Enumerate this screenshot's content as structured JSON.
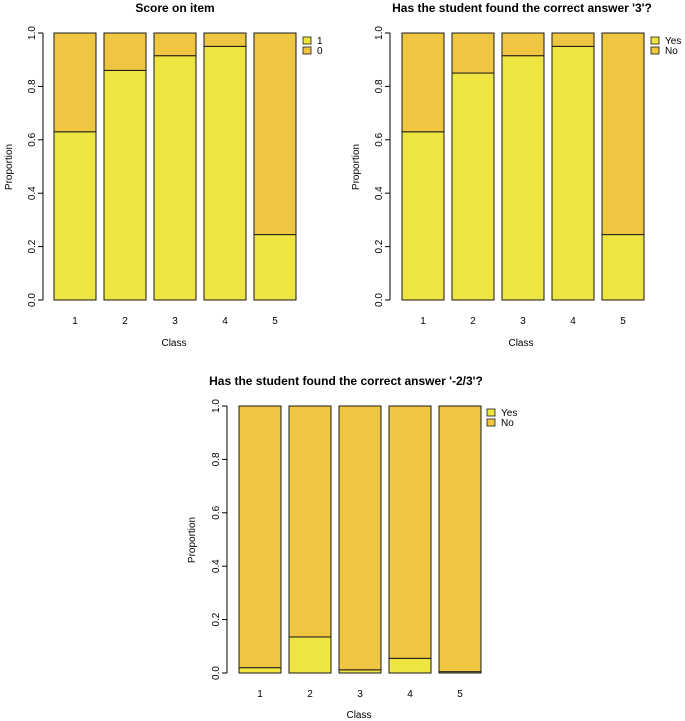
{
  "colors": {
    "lower": "#eee442",
    "upper": "#f0c542",
    "stroke": "#1a1a1a"
  },
  "chart_data": [
    {
      "type": "bar",
      "stacked": true,
      "title": "Score on item",
      "xlabel": "Class",
      "ylabel": "Proportion",
      "ylim": [
        0,
        1
      ],
      "yticks": [
        "0.0",
        "0.2",
        "0.4",
        "0.6",
        "0.8",
        "1.0"
      ],
      "categories": [
        "1",
        "2",
        "3",
        "4",
        "5"
      ],
      "series": [
        {
          "name": "1",
          "values": [
            0.63,
            0.86,
            0.915,
            0.95,
            0.245
          ]
        },
        {
          "name": "0",
          "values": [
            0.37,
            0.14,
            0.085,
            0.05,
            0.755
          ]
        }
      ],
      "legend": "top-right"
    },
    {
      "type": "bar",
      "stacked": true,
      "title": "Has the student found the correct answer '3'?",
      "xlabel": "Class",
      "ylabel": "Proportion",
      "ylim": [
        0,
        1
      ],
      "yticks": [
        "0.0",
        "0.2",
        "0.4",
        "0.6",
        "0.8",
        "1.0"
      ],
      "categories": [
        "1",
        "2",
        "3",
        "4",
        "5"
      ],
      "series": [
        {
          "name": "Yes",
          "values": [
            0.63,
            0.85,
            0.915,
            0.95,
            0.245
          ]
        },
        {
          "name": "No",
          "values": [
            0.37,
            0.15,
            0.085,
            0.05,
            0.755
          ]
        }
      ],
      "legend": "top-right"
    },
    {
      "type": "bar",
      "stacked": true,
      "title": "Has the student found the correct answer '-2/3'?",
      "xlabel": "Class",
      "ylabel": "Proportion",
      "ylim": [
        0,
        1
      ],
      "yticks": [
        "0.0",
        "0.2",
        "0.4",
        "0.6",
        "0.8",
        "1.0"
      ],
      "categories": [
        "1",
        "2",
        "3",
        "4",
        "5"
      ],
      "series": [
        {
          "name": "Yes",
          "values": [
            0.02,
            0.135,
            0.012,
            0.055,
            0.005
          ]
        },
        {
          "name": "No",
          "values": [
            0.98,
            0.865,
            0.988,
            0.945,
            0.995
          ]
        }
      ],
      "legend": "top-right"
    }
  ]
}
